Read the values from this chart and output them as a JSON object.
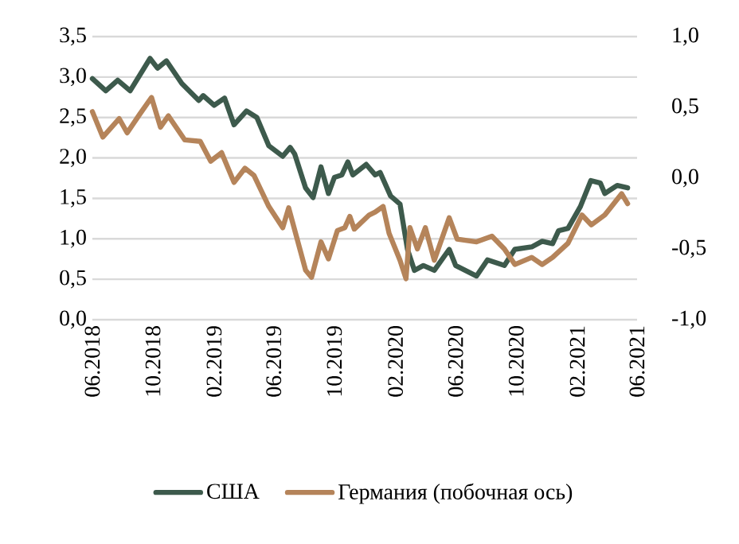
{
  "chart_data": {
    "type": "line",
    "grid": "y",
    "legend": "bottom",
    "line_style": "solid",
    "marker": "none",
    "xlim": [
      "2018-06-01",
      "2021-06-01"
    ],
    "xticks": [
      {
        "value": "2018-06",
        "label": "06.2018"
      },
      {
        "value": "2018-10",
        "label": "10.2018"
      },
      {
        "value": "2019-02",
        "label": "02.2019"
      },
      {
        "value": "2019-06",
        "label": "06.2019"
      },
      {
        "value": "2019-10",
        "label": "10.2019"
      },
      {
        "value": "2020-02",
        "label": "02.2020"
      },
      {
        "value": "2020-06",
        "label": "06.2020"
      },
      {
        "value": "2020-10",
        "label": "10.2020"
      },
      {
        "value": "2021-02",
        "label": "02.2021"
      },
      {
        "value": "2021-06",
        "label": "06.2021"
      }
    ],
    "ylim": [
      0,
      3.5
    ],
    "yticks": [
      {
        "value": 0,
        "label": "0,0"
      },
      {
        "value": 0.5,
        "label": "0,5"
      },
      {
        "value": 1,
        "label": "1,0"
      },
      {
        "value": 1.5,
        "label": "1,5"
      },
      {
        "value": 2,
        "label": "2,0"
      },
      {
        "value": 2.5,
        "label": "2,5"
      },
      {
        "value": 3,
        "label": "3,0"
      },
      {
        "value": 3.5,
        "label": "3,5"
      }
    ],
    "y2lim": [
      -1,
      1
    ],
    "y2ticks": [
      {
        "value": -1,
        "label": "-1,0"
      },
      {
        "value": -0.5,
        "label": "-0,5"
      },
      {
        "value": 0,
        "label": "0,0"
      },
      {
        "value": 0.5,
        "label": "0,5"
      },
      {
        "value": 1,
        "label": "1,0"
      }
    ],
    "series": [
      {
        "name": "США",
        "color": "#3d5a4c",
        "x": [
          "2018-06-01",
          "2018-06-28",
          "2018-07-22",
          "2018-08-16",
          "2018-09-25",
          "2018-10-10",
          "2018-10-28",
          "2018-11-28",
          "2019-01-01",
          "2019-01-10",
          "2019-02-01",
          "2019-02-22",
          "2019-03-13",
          "2019-04-07",
          "2019-04-28",
          "2019-05-22",
          "2019-06-19",
          "2019-07-04",
          "2019-07-13",
          "2019-08-04",
          "2019-08-19",
          "2019-09-04",
          "2019-09-19",
          "2019-10-01",
          "2019-10-16",
          "2019-10-28",
          "2019-11-07",
          "2019-12-04",
          "2019-12-22",
          "2020-01-01",
          "2020-01-22",
          "2020-02-10",
          "2020-02-25",
          "2020-03-10",
          "2020-03-28",
          "2020-04-19",
          "2020-05-19",
          "2020-06-01",
          "2020-07-13",
          "2020-08-04",
          "2020-09-07",
          "2020-09-28",
          "2020-11-01",
          "2020-11-22",
          "2020-12-13",
          "2020-12-25",
          "2021-01-13",
          "2021-02-07",
          "2021-02-28",
          "2021-03-19",
          "2021-03-28",
          "2021-04-22",
          "2021-05-13"
        ],
        "values": [
          2.98,
          2.83,
          2.96,
          2.83,
          3.23,
          3.11,
          3.2,
          2.92,
          2.71,
          2.77,
          2.65,
          2.74,
          2.41,
          2.58,
          2.5,
          2.15,
          2.02,
          2.13,
          2.05,
          1.63,
          1.51,
          1.89,
          1.56,
          1.76,
          1.79,
          1.95,
          1.79,
          1.92,
          1.79,
          1.82,
          1.53,
          1.43,
          0.87,
          0.61,
          0.67,
          0.61,
          0.87,
          0.67,
          0.54,
          0.74,
          0.67,
          0.87,
          0.9,
          0.97,
          0.94,
          1.1,
          1.13,
          1.4,
          1.72,
          1.69,
          1.56,
          1.66,
          1.63
        ]
      },
      {
        "name": "Германия (побочная ось)",
        "color": "#b5845a",
        "axis": "y2",
        "x": [
          "2018-06-01",
          "2018-06-22",
          "2018-07-25",
          "2018-08-10",
          "2018-09-04",
          "2018-09-28",
          "2018-10-16",
          "2018-11-01",
          "2018-12-04",
          "2019-01-04",
          "2019-01-25",
          "2019-02-16",
          "2019-03-13",
          "2019-04-04",
          "2019-04-22",
          "2019-05-22",
          "2019-06-19",
          "2019-07-01",
          "2019-08-04",
          "2019-08-16",
          "2019-09-04",
          "2019-09-19",
          "2019-10-07",
          "2019-10-22",
          "2019-11-01",
          "2019-11-10",
          "2019-12-10",
          "2019-12-22",
          "2020-01-07",
          "2020-01-19",
          "2020-02-10",
          "2020-02-22",
          "2020-03-01",
          "2020-03-16",
          "2020-04-01",
          "2020-04-19",
          "2020-05-19",
          "2020-06-04",
          "2020-07-13",
          "2020-08-13",
          "2020-09-07",
          "2020-09-28",
          "2020-11-01",
          "2020-11-22",
          "2020-12-13",
          "2021-01-13",
          "2021-02-10",
          "2021-03-01",
          "2021-03-28",
          "2021-05-01",
          "2021-05-13"
        ],
        "values": [
          0.47,
          0.29,
          0.42,
          0.32,
          0.45,
          0.57,
          0.36,
          0.44,
          0.27,
          0.26,
          0.12,
          0.18,
          -0.03,
          0.07,
          0.02,
          -0.2,
          -0.35,
          -0.21,
          -0.65,
          -0.7,
          -0.45,
          -0.57,
          -0.37,
          -0.35,
          -0.27,
          -0.36,
          -0.26,
          -0.24,
          -0.2,
          -0.39,
          -0.58,
          -0.71,
          -0.35,
          -0.5,
          -0.35,
          -0.58,
          -0.28,
          -0.43,
          -0.45,
          -0.41,
          -0.5,
          -0.61,
          -0.56,
          -0.61,
          -0.56,
          -0.46,
          -0.26,
          -0.33,
          -0.26,
          -0.11,
          -0.18
        ]
      }
    ]
  }
}
